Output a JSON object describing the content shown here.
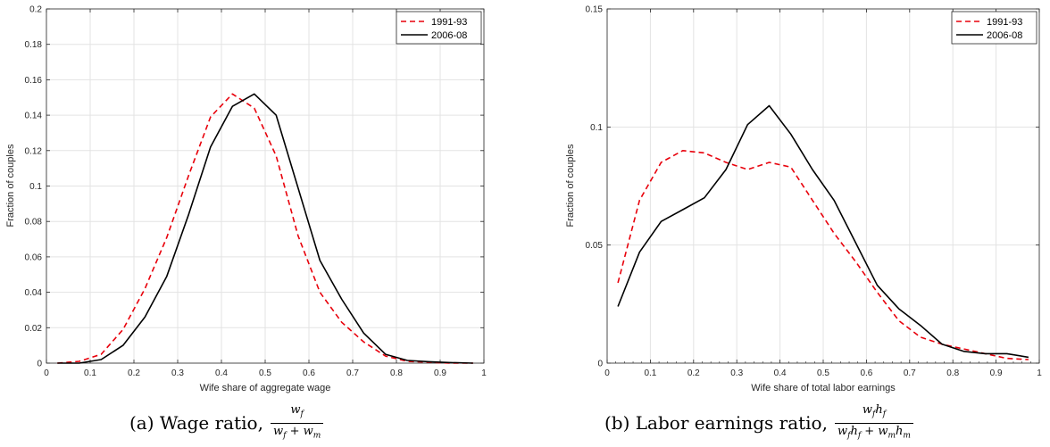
{
  "chart_data": [
    {
      "type": "line",
      "xlabel": "Wife share of aggregate wage",
      "ylabel": "Fraction of couples",
      "xlim": [
        0,
        1
      ],
      "ylim": [
        0,
        0.2
      ],
      "xticks": [
        0,
        0.1,
        0.2,
        0.3,
        0.4,
        0.5,
        0.6,
        0.7,
        0.8,
        0.9,
        1
      ],
      "xtick_labels": [
        "0",
        "0.1",
        "0.2",
        "0.3",
        "0.4",
        "0.5",
        "0.6",
        "0.7",
        "0.8",
        "0.9",
        "1"
      ],
      "yticks": [
        0,
        0.02,
        0.04,
        0.06,
        0.08,
        0.1,
        0.12,
        0.14,
        0.16,
        0.18,
        0.2
      ],
      "ytick_labels": [
        "0",
        "0.02",
        "0.04",
        "0.06",
        "0.08",
        "0.1",
        "0.12",
        "0.14",
        "0.16",
        "0.18",
        "0.2"
      ],
      "grid": true,
      "legend_position": "top-right",
      "caption": "(a) Wage ratio,",
      "formula": {
        "num": "w_f",
        "den": "w_f + w_m"
      },
      "series": [
        {
          "name": "1991-93",
          "color": "#e8000b",
          "style": "dashed",
          "x": [
            0.025,
            0.075,
            0.125,
            0.175,
            0.225,
            0.275,
            0.325,
            0.375,
            0.425,
            0.475,
            0.525,
            0.575,
            0.625,
            0.675,
            0.725,
            0.775,
            0.825,
            0.875,
            0.925,
            0.975
          ],
          "y": [
            0.0,
            0.001,
            0.005,
            0.019,
            0.042,
            0.071,
            0.106,
            0.139,
            0.152,
            0.144,
            0.117,
            0.072,
            0.04,
            0.023,
            0.012,
            0.004,
            0.001,
            0.0005,
            0.0,
            0.0
          ]
        },
        {
          "name": "2006-08",
          "color": "#000000",
          "style": "solid",
          "x": [
            0.025,
            0.075,
            0.125,
            0.175,
            0.225,
            0.275,
            0.325,
            0.375,
            0.425,
            0.475,
            0.525,
            0.575,
            0.625,
            0.675,
            0.725,
            0.775,
            0.825,
            0.875,
            0.925,
            0.975
          ],
          "y": [
            0.0,
            0.0,
            0.002,
            0.01,
            0.026,
            0.049,
            0.084,
            0.122,
            0.145,
            0.152,
            0.14,
            0.099,
            0.058,
            0.036,
            0.017,
            0.005,
            0.0015,
            0.0008,
            0.0003,
            0.0
          ]
        }
      ]
    },
    {
      "type": "line",
      "xlabel": "Wife share of total labor earnings",
      "ylabel": "Fraction of couples",
      "xlim": [
        0,
        1
      ],
      "ylim": [
        0,
        0.15
      ],
      "xticks": [
        0,
        0.1,
        0.2,
        0.3,
        0.4,
        0.5,
        0.6,
        0.7,
        0.8,
        0.9,
        1
      ],
      "xtick_labels": [
        "0",
        "0.1",
        "0.2",
        "0.3",
        "0.4",
        "0.5",
        "0.6",
        "0.7",
        "0.8",
        "0.9",
        "1"
      ],
      "yticks": [
        0,
        0.05,
        0.1,
        0.15
      ],
      "ytick_labels": [
        "0",
        "0.05",
        "0.1",
        "0.15"
      ],
      "minor_xticks": true,
      "grid": true,
      "legend_position": "top-right",
      "caption": "(b) Labor earnings ratio,",
      "formula": {
        "num": "w_f h_f",
        "den": "w_f h_f + w_m h_m"
      },
      "series": [
        {
          "name": "1991-93",
          "color": "#e8000b",
          "style": "dashed",
          "x": [
            0.025,
            0.075,
            0.125,
            0.175,
            0.225,
            0.275,
            0.325,
            0.375,
            0.425,
            0.475,
            0.525,
            0.575,
            0.625,
            0.675,
            0.725,
            0.775,
            0.825,
            0.875,
            0.925,
            0.975
          ],
          "y": [
            0.034,
            0.069,
            0.085,
            0.09,
            0.089,
            0.085,
            0.082,
            0.085,
            0.083,
            0.069,
            0.055,
            0.043,
            0.03,
            0.018,
            0.011,
            0.008,
            0.006,
            0.004,
            0.002,
            0.0015
          ]
        },
        {
          "name": "2006-08",
          "color": "#000000",
          "style": "solid",
          "x": [
            0.025,
            0.075,
            0.125,
            0.175,
            0.225,
            0.275,
            0.325,
            0.375,
            0.425,
            0.475,
            0.525,
            0.575,
            0.625,
            0.675,
            0.725,
            0.775,
            0.825,
            0.875,
            0.925,
            0.975
          ],
          "y": [
            0.024,
            0.047,
            0.06,
            0.065,
            0.07,
            0.082,
            0.101,
            0.109,
            0.097,
            0.082,
            0.069,
            0.051,
            0.033,
            0.023,
            0.016,
            0.008,
            0.005,
            0.004,
            0.004,
            0.0025
          ]
        }
      ]
    }
  ]
}
